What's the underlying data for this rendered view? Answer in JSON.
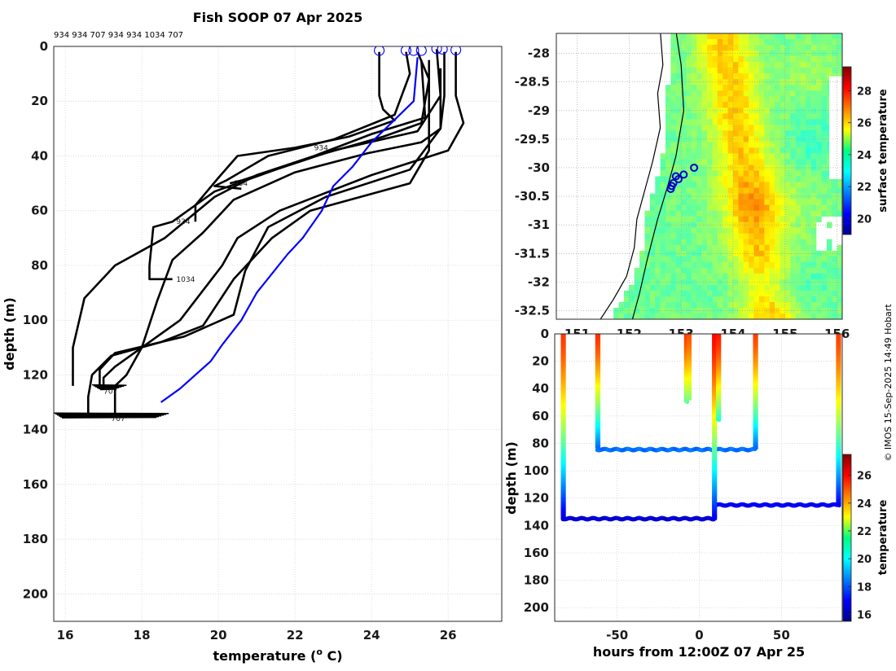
{
  "chart_data": [
    {
      "id": "profiles",
      "type": "line",
      "title": "Fish SOOP 07 Apr 2025",
      "header_ids": "934 934 707 934 934 1034 707",
      "xlabel": "temperature (",
      "xlabel_sup": "o",
      "xlabel_unit": " C)",
      "ylabel": "depth (m)",
      "xlim": [
        15.7,
        27.4
      ],
      "ylim": [
        210,
        0
      ],
      "xticks": [
        16,
        18,
        20,
        22,
        24,
        26
      ],
      "yticks": [
        0,
        20,
        40,
        60,
        80,
        100,
        120,
        140,
        160,
        180,
        200
      ],
      "grid": true,
      "series": [
        {
          "name": "profile-1",
          "color": "#000000",
          "points": [
            [
              24.2,
              2
            ],
            [
              24.2,
              18
            ],
            [
              24.3,
              23
            ],
            [
              24.6,
              27
            ],
            [
              23.4,
              33
            ],
            [
              22.0,
              37
            ],
            [
              20.5,
              40
            ],
            [
              20.0,
              48
            ],
            [
              19.4,
              58
            ],
            [
              19.4,
              64
            ]
          ]
        },
        {
          "name": "profile-2",
          "color": "#000000",
          "points": [
            [
              24.9,
              2
            ],
            [
              25.0,
              10
            ],
            [
              24.6,
              25
            ],
            [
              23.0,
              34
            ],
            [
              21.3,
              40
            ],
            [
              20.2,
              49
            ],
            [
              19.9,
              51
            ],
            [
              20.6,
              52
            ]
          ]
        },
        {
          "name": "profile-3",
          "color": "#000000",
          "points": [
            [
              25.2,
              2
            ],
            [
              25.5,
              12
            ],
            [
              25.3,
              28
            ],
            [
              24.3,
              33
            ],
            [
              22.3,
              41
            ],
            [
              20.6,
              49
            ],
            [
              20.3,
              50
            ]
          ]
        },
        {
          "name": "profile-4",
          "color": "#000000",
          "points": [
            [
              25.7,
              1
            ],
            [
              25.8,
              18
            ],
            [
              25.2,
              31
            ],
            [
              23.0,
              38
            ],
            [
              21.5,
              45
            ],
            [
              19.9,
              53
            ],
            [
              19.0,
              62
            ],
            [
              18.8,
              64
            ],
            [
              18.3,
              66
            ],
            [
              18.2,
              80
            ],
            [
              18.2,
              85
            ],
            [
              18.8,
              85
            ]
          ]
        },
        {
          "name": "profile-5",
          "color": "#000000",
          "points": [
            [
              25.9,
              2
            ],
            [
              25.9,
              18
            ],
            [
              25.8,
              30
            ],
            [
              25.3,
              35
            ],
            [
              23.9,
              39
            ],
            [
              22.0,
              46
            ],
            [
              20.4,
              56
            ],
            [
              19.6,
              68
            ],
            [
              18.8,
              78
            ],
            [
              18.4,
              93
            ],
            [
              18.0,
              110
            ],
            [
              17.6,
              120
            ],
            [
              17.3,
              124
            ],
            [
              17.3,
              134
            ],
            [
              17.3,
              135
            ]
          ]
        },
        {
          "name": "profile-6",
          "color": "#000000",
          "points": [
            [
              26.2,
              2
            ],
            [
              26.2,
              18
            ],
            [
              26.4,
              28
            ],
            [
              26.0,
              38
            ],
            [
              24.0,
              47
            ],
            [
              21.6,
              60
            ],
            [
              20.5,
              70
            ],
            [
              20.1,
              80
            ],
            [
              19.0,
              100
            ],
            [
              17.3,
              117
            ],
            [
              17.0,
              121
            ],
            [
              17.0,
              124
            ]
          ]
        },
        {
          "name": "profile-7",
          "color": "#000000",
          "points": [
            [
              25.5,
              5
            ],
            [
              25.5,
              30
            ],
            [
              25.5,
              38
            ],
            [
              25.0,
              50
            ],
            [
              22.4,
              60
            ],
            [
              21.4,
              70
            ],
            [
              20.4,
              85
            ],
            [
              19.6,
              102
            ],
            [
              18.5,
              108
            ],
            [
              17.2,
              113
            ],
            [
              16.7,
              120
            ],
            [
              16.6,
              128
            ],
            [
              16.6,
              135
            ]
          ]
        },
        {
          "name": "profile-8",
          "color": "#000000",
          "points": [
            [
              25.8,
              8
            ],
            [
              25.8,
              30
            ],
            [
              25.0,
              45
            ],
            [
              22.8,
              55
            ],
            [
              21.3,
              66
            ],
            [
              20.7,
              82
            ],
            [
              20.4,
              98
            ],
            [
              19.1,
              106
            ],
            [
              17.3,
              112
            ],
            [
              16.9,
              118
            ],
            [
              16.9,
              124
            ]
          ]
        },
        {
          "name": "profile-9",
          "color": "#000000",
          "points": [
            [
              25.3,
              5
            ],
            [
              25.4,
              26
            ],
            [
              24.0,
              32
            ],
            [
              22.5,
              40
            ],
            [
              21.0,
              47
            ],
            [
              19.9,
              55
            ],
            [
              18.6,
              70
            ],
            [
              17.3,
              80
            ],
            [
              16.5,
              92
            ],
            [
              16.2,
              110
            ],
            [
              16.2,
              124
            ]
          ]
        },
        {
          "name": "mean-profile",
          "color": "#0000ff",
          "points": [
            [
              25.2,
              4
            ],
            [
              25.1,
              20
            ],
            [
              24.0,
              35
            ],
            [
              23.5,
              44
            ],
            [
              23.0,
              51
            ],
            [
              22.7,
              60
            ],
            [
              22.2,
              70
            ],
            [
              21.8,
              76
            ],
            [
              21.0,
              90
            ],
            [
              20.6,
              100
            ],
            [
              20.1,
              109
            ],
            [
              19.8,
              115
            ],
            [
              19.0,
              125
            ],
            [
              18.5,
              130
            ]
          ]
        }
      ],
      "start_markers": [
        [
          24.2,
          1.5
        ],
        [
          24.9,
          1.5
        ],
        [
          25.1,
          1.5
        ],
        [
          25.3,
          1.5
        ],
        [
          25.7,
          0.8
        ],
        [
          25.85,
          1
        ],
        [
          26.2,
          1.3
        ]
      ],
      "bottom_clutter": [
        {
          "depth": 124.5,
          "xmin": 16.7,
          "xmax": 17.6
        },
        {
          "depth": 134.8,
          "xmin": 15.7,
          "xmax": 18.7
        }
      ],
      "profile_labels": [
        {
          "text": "934",
          "t": 18.9,
          "d": 64
        },
        {
          "text": "934",
          "t": 20.4,
          "d": 50
        },
        {
          "text": "1034",
          "t": 18.9,
          "d": 85
        },
        {
          "text": "707",
          "t": 17.0,
          "d": 126
        },
        {
          "text": "707",
          "t": 17.2,
          "d": 136
        },
        {
          "text": "934",
          "t": 22.5,
          "d": 37
        }
      ]
    },
    {
      "id": "map",
      "type": "heatmap",
      "xlim": [
        150.6,
        156.1
      ],
      "ylim": [
        -32.65,
        -27.65
      ],
      "yticks": [
        -28,
        -28.5,
        -29,
        -29.5,
        -30,
        -30.5,
        -31,
        -31.5,
        -32,
        -32.5
      ],
      "yticklabels": [
        "-28",
        "-28.5",
        "-29",
        "-29.5",
        "-30",
        "-30.5",
        "-31",
        "-31.5",
        "-32",
        "-32.5"
      ],
      "xticks": [
        151,
        152,
        153,
        154,
        155,
        156
      ],
      "xticklabels": [
        "151",
        "152",
        "153",
        "154",
        "155",
        "156"
      ],
      "colorbar_label": "surface temperature",
      "colorbar_ticks": [
        20,
        22,
        24,
        26,
        28
      ],
      "colorbar_range": [
        19.0,
        29.5
      ],
      "track": [
        [
          152.9,
          -27.6
        ],
        [
          153.0,
          -28.2
        ],
        [
          153.05,
          -29.0
        ],
        [
          152.9,
          -29.8
        ],
        [
          152.75,
          -30.3
        ],
        [
          152.55,
          -30.9
        ],
        [
          152.35,
          -31.6
        ],
        [
          152.2,
          -32.2
        ],
        [
          152.05,
          -32.7
        ]
      ],
      "coast": [
        [
          152.6,
          -27.6
        ],
        [
          152.65,
          -28.2
        ],
        [
          152.55,
          -28.7
        ],
        [
          152.6,
          -29.3
        ],
        [
          152.45,
          -29.9
        ],
        [
          152.3,
          -30.4
        ],
        [
          152.15,
          -30.9
        ],
        [
          152.1,
          -31.4
        ],
        [
          151.95,
          -31.9
        ],
        [
          151.7,
          -32.3
        ],
        [
          151.45,
          -32.65
        ]
      ],
      "stations": [
        [
          153.25,
          -30.0
        ],
        [
          153.05,
          -30.12
        ],
        [
          152.9,
          -30.15
        ],
        [
          152.95,
          -30.2
        ],
        [
          152.85,
          -30.27
        ],
        [
          152.82,
          -30.32
        ],
        [
          152.8,
          -30.37
        ]
      ]
    },
    {
      "id": "timeseries",
      "type": "scatter",
      "xlabel": "hours from 12:00Z 07 Apr 25",
      "ylabel": "depth (m)",
      "xlim": [
        -88,
        87
      ],
      "ylim": [
        210,
        0
      ],
      "xticks": [
        -50,
        0,
        50
      ],
      "yticks": [
        0,
        20,
        40,
        60,
        80,
        100,
        120,
        140,
        160,
        180,
        200
      ],
      "colorbar_label": "temperature",
      "colorbar_ticks": [
        16,
        18,
        20,
        22,
        24,
        26
      ],
      "colorbar_range": [
        15.5,
        27.5
      ],
      "casts": [
        {
          "hour": -83,
          "bottom": 135,
          "tsurf": 25.4,
          "tbot": 16.6
        },
        {
          "hour": -62,
          "bottom": 84,
          "tsurf": 25.5,
          "tbot": 18.2
        },
        {
          "hour": -8,
          "bottom": 50,
          "tsurf": 25.4,
          "tbot": 21.2
        },
        {
          "hour": -6.5,
          "bottom": 48,
          "tsurf": 25.1,
          "tbot": 21.6
        },
        {
          "hour": 9,
          "bottom": 135,
          "tsurf": 26.0,
          "tbot": 16.9
        },
        {
          "hour": 11.5,
          "bottom": 63,
          "tsurf": 25.8,
          "tbot": 20.5
        },
        {
          "hour": 34,
          "bottom": 84,
          "tsurf": 25.3,
          "tbot": 18.2
        },
        {
          "hour": 84.5,
          "bottom": 125,
          "tsurf": 25.3,
          "tbot": 17.0
        }
      ],
      "bottom_tracks": [
        {
          "from": -83,
          "to": 9,
          "depth": 135,
          "temp": 16.5
        },
        {
          "from": -62,
          "to": 34,
          "depth": 84.5,
          "temp": 18.3
        },
        {
          "from": 9,
          "to": 84.5,
          "depth": 125,
          "temp": 16.9
        }
      ]
    }
  ],
  "credit": "© IMOS 15-Sep-2025 14:49 Hobart"
}
